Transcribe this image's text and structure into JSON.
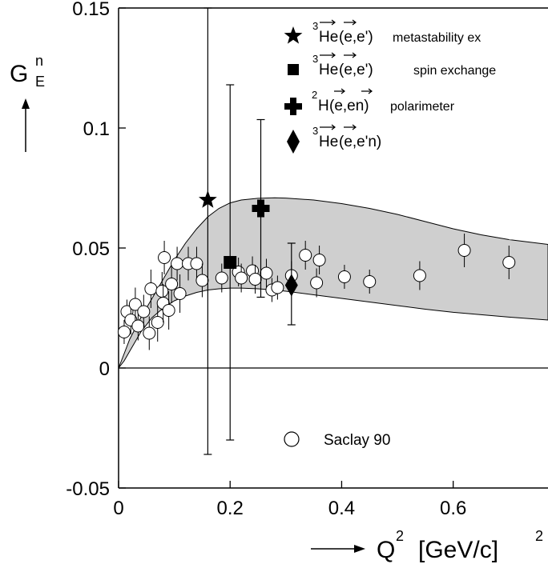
{
  "chart_data": {
    "type": "scatter",
    "title": "",
    "ylabel": "G",
    "ylabel_sup": "n",
    "ylabel_sub": "E",
    "xlabel": "Q",
    "xlabel_sup": "2",
    "xlabel_unit": "[GeV/c]",
    "xlabel_unit_sup": "2",
    "xlim": [
      0,
      0.77
    ],
    "ylim": [
      -0.05,
      0.15
    ],
    "x_ticks": [
      0,
      0.2,
      0.4,
      0.6
    ],
    "x_tick_labels": [
      "0",
      "0.2",
      "0.4",
      "0.6"
    ],
    "y_ticks": [
      -0.05,
      0,
      0.05,
      0.1,
      0.15
    ],
    "y_tick_labels": [
      "-0.05",
      "0",
      "0.05",
      "0.1",
      "0.15"
    ],
    "grid": false,
    "legend_top": {
      "placement": "top-right",
      "entries": [
        {
          "marker": "star",
          "nucleus_sup": "3",
          "nucleus": "He",
          "reaction": "(e,e')",
          "vector_marks": "nucleus, first e",
          "label": "metastability ex"
        },
        {
          "marker": "square",
          "nucleus_sup": "3",
          "nucleus": "He",
          "reaction": "(e,e')",
          "vector_marks": "nucleus, first e",
          "label": "spin exchange"
        },
        {
          "marker": "plus",
          "nucleus_sup": "2",
          "nucleus": "H",
          "reaction": "(e,en)",
          "vector_marks": "first e, n",
          "label": "polarimeter"
        },
        {
          "marker": "diamond",
          "nucleus_sup": "3",
          "nucleus": "He",
          "reaction": "(e,e'n)",
          "vector_marks": "nucleus, first e",
          "label": ""
        }
      ]
    },
    "legend_bottom": {
      "placement": "bottom-center",
      "entries": [
        {
          "marker": "circle",
          "label": "Saclay 90"
        }
      ]
    },
    "band": {
      "x": [
        0.0,
        0.01,
        0.02,
        0.04,
        0.06,
        0.08,
        0.1,
        0.12,
        0.14,
        0.16,
        0.18,
        0.2,
        0.22,
        0.25,
        0.28,
        0.3,
        0.35,
        0.4,
        0.45,
        0.5,
        0.55,
        0.6,
        0.65,
        0.7,
        0.77
      ],
      "upper": [
        0.0,
        0.006,
        0.012,
        0.021,
        0.029,
        0.037,
        0.045,
        0.052,
        0.058,
        0.063,
        0.0665,
        0.0688,
        0.07,
        0.0707,
        0.0709,
        0.0708,
        0.07,
        0.0685,
        0.0665,
        0.064,
        0.061,
        0.058,
        0.0555,
        0.0535,
        0.0515
      ],
      "lower": [
        0.0,
        0.003,
        0.007,
        0.015,
        0.021,
        0.025,
        0.028,
        0.03,
        0.0315,
        0.0325,
        0.033,
        0.0333,
        0.0333,
        0.033,
        0.0325,
        0.032,
        0.0305,
        0.029,
        0.0275,
        0.026,
        0.0245,
        0.0232,
        0.0222,
        0.0212,
        0.02
      ]
    },
    "series": [
      {
        "marker": "circle",
        "points": [
          {
            "x": 0.01,
            "y": 0.015,
            "err": 0.005
          },
          {
            "x": 0.015,
            "y": 0.0235,
            "err": 0.005
          },
          {
            "x": 0.022,
            "y": 0.02,
            "err": 0.006
          },
          {
            "x": 0.03,
            "y": 0.0265,
            "err": 0.007
          },
          {
            "x": 0.035,
            "y": 0.0175,
            "err": 0.006
          },
          {
            "x": 0.045,
            "y": 0.0235,
            "err": 0.007
          },
          {
            "x": 0.055,
            "y": 0.0145,
            "err": 0.007
          },
          {
            "x": 0.058,
            "y": 0.033,
            "err": 0.008
          },
          {
            "x": 0.07,
            "y": 0.019,
            "err": 0.008
          },
          {
            "x": 0.078,
            "y": 0.032,
            "err": 0.008
          },
          {
            "x": 0.08,
            "y": 0.027,
            "err": 0.008
          },
          {
            "x": 0.082,
            "y": 0.046,
            "err": 0.007
          },
          {
            "x": 0.09,
            "y": 0.024,
            "err": 0.008
          },
          {
            "x": 0.095,
            "y": 0.035,
            "err": 0.008
          },
          {
            "x": 0.105,
            "y": 0.0435,
            "err": 0.007
          },
          {
            "x": 0.11,
            "y": 0.031,
            "err": 0.008
          },
          {
            "x": 0.125,
            "y": 0.0435,
            "err": 0.007
          },
          {
            "x": 0.14,
            "y": 0.0435,
            "err": 0.007
          },
          {
            "x": 0.15,
            "y": 0.0365,
            "err": 0.007
          },
          {
            "x": 0.185,
            "y": 0.0375,
            "err": 0.006
          },
          {
            "x": 0.215,
            "y": 0.04,
            "err": 0.006
          },
          {
            "x": 0.22,
            "y": 0.0375,
            "err": 0.006
          },
          {
            "x": 0.24,
            "y": 0.0405,
            "err": 0.006
          },
          {
            "x": 0.245,
            "y": 0.037,
            "err": 0.006
          },
          {
            "x": 0.265,
            "y": 0.0395,
            "err": 0.006
          },
          {
            "x": 0.275,
            "y": 0.0325,
            "err": 0.005
          },
          {
            "x": 0.285,
            "y": 0.0335,
            "err": 0.005
          },
          {
            "x": 0.31,
            "y": 0.0385,
            "err": 0.006
          },
          {
            "x": 0.335,
            "y": 0.047,
            "err": 0.006
          },
          {
            "x": 0.355,
            "y": 0.0355,
            "err": 0.006
          },
          {
            "x": 0.36,
            "y": 0.045,
            "err": 0.006
          },
          {
            "x": 0.405,
            "y": 0.038,
            "err": 0.005
          },
          {
            "x": 0.45,
            "y": 0.036,
            "err": 0.005
          },
          {
            "x": 0.54,
            "y": 0.0385,
            "err": 0.006
          },
          {
            "x": 0.62,
            "y": 0.049,
            "err": 0.007
          },
          {
            "x": 0.7,
            "y": 0.044,
            "err": 0.007
          }
        ]
      },
      {
        "marker": "star",
        "points": [
          {
            "x": 0.16,
            "y": 0.07,
            "err_low": 0.106,
            "err_high": 0.08
          }
        ]
      },
      {
        "marker": "square",
        "points": [
          {
            "x": 0.2,
            "y": 0.044,
            "err_low": 0.074,
            "err_high": 0.074
          }
        ]
      },
      {
        "marker": "plus",
        "points": [
          {
            "x": 0.255,
            "y": 0.0665,
            "err_low": 0.037,
            "err_high": 0.037
          }
        ]
      },
      {
        "marker": "diamond",
        "points": [
          {
            "x": 0.31,
            "y": 0.0345,
            "err_low": 0.0165,
            "err_high": 0.0175
          }
        ]
      }
    ]
  }
}
